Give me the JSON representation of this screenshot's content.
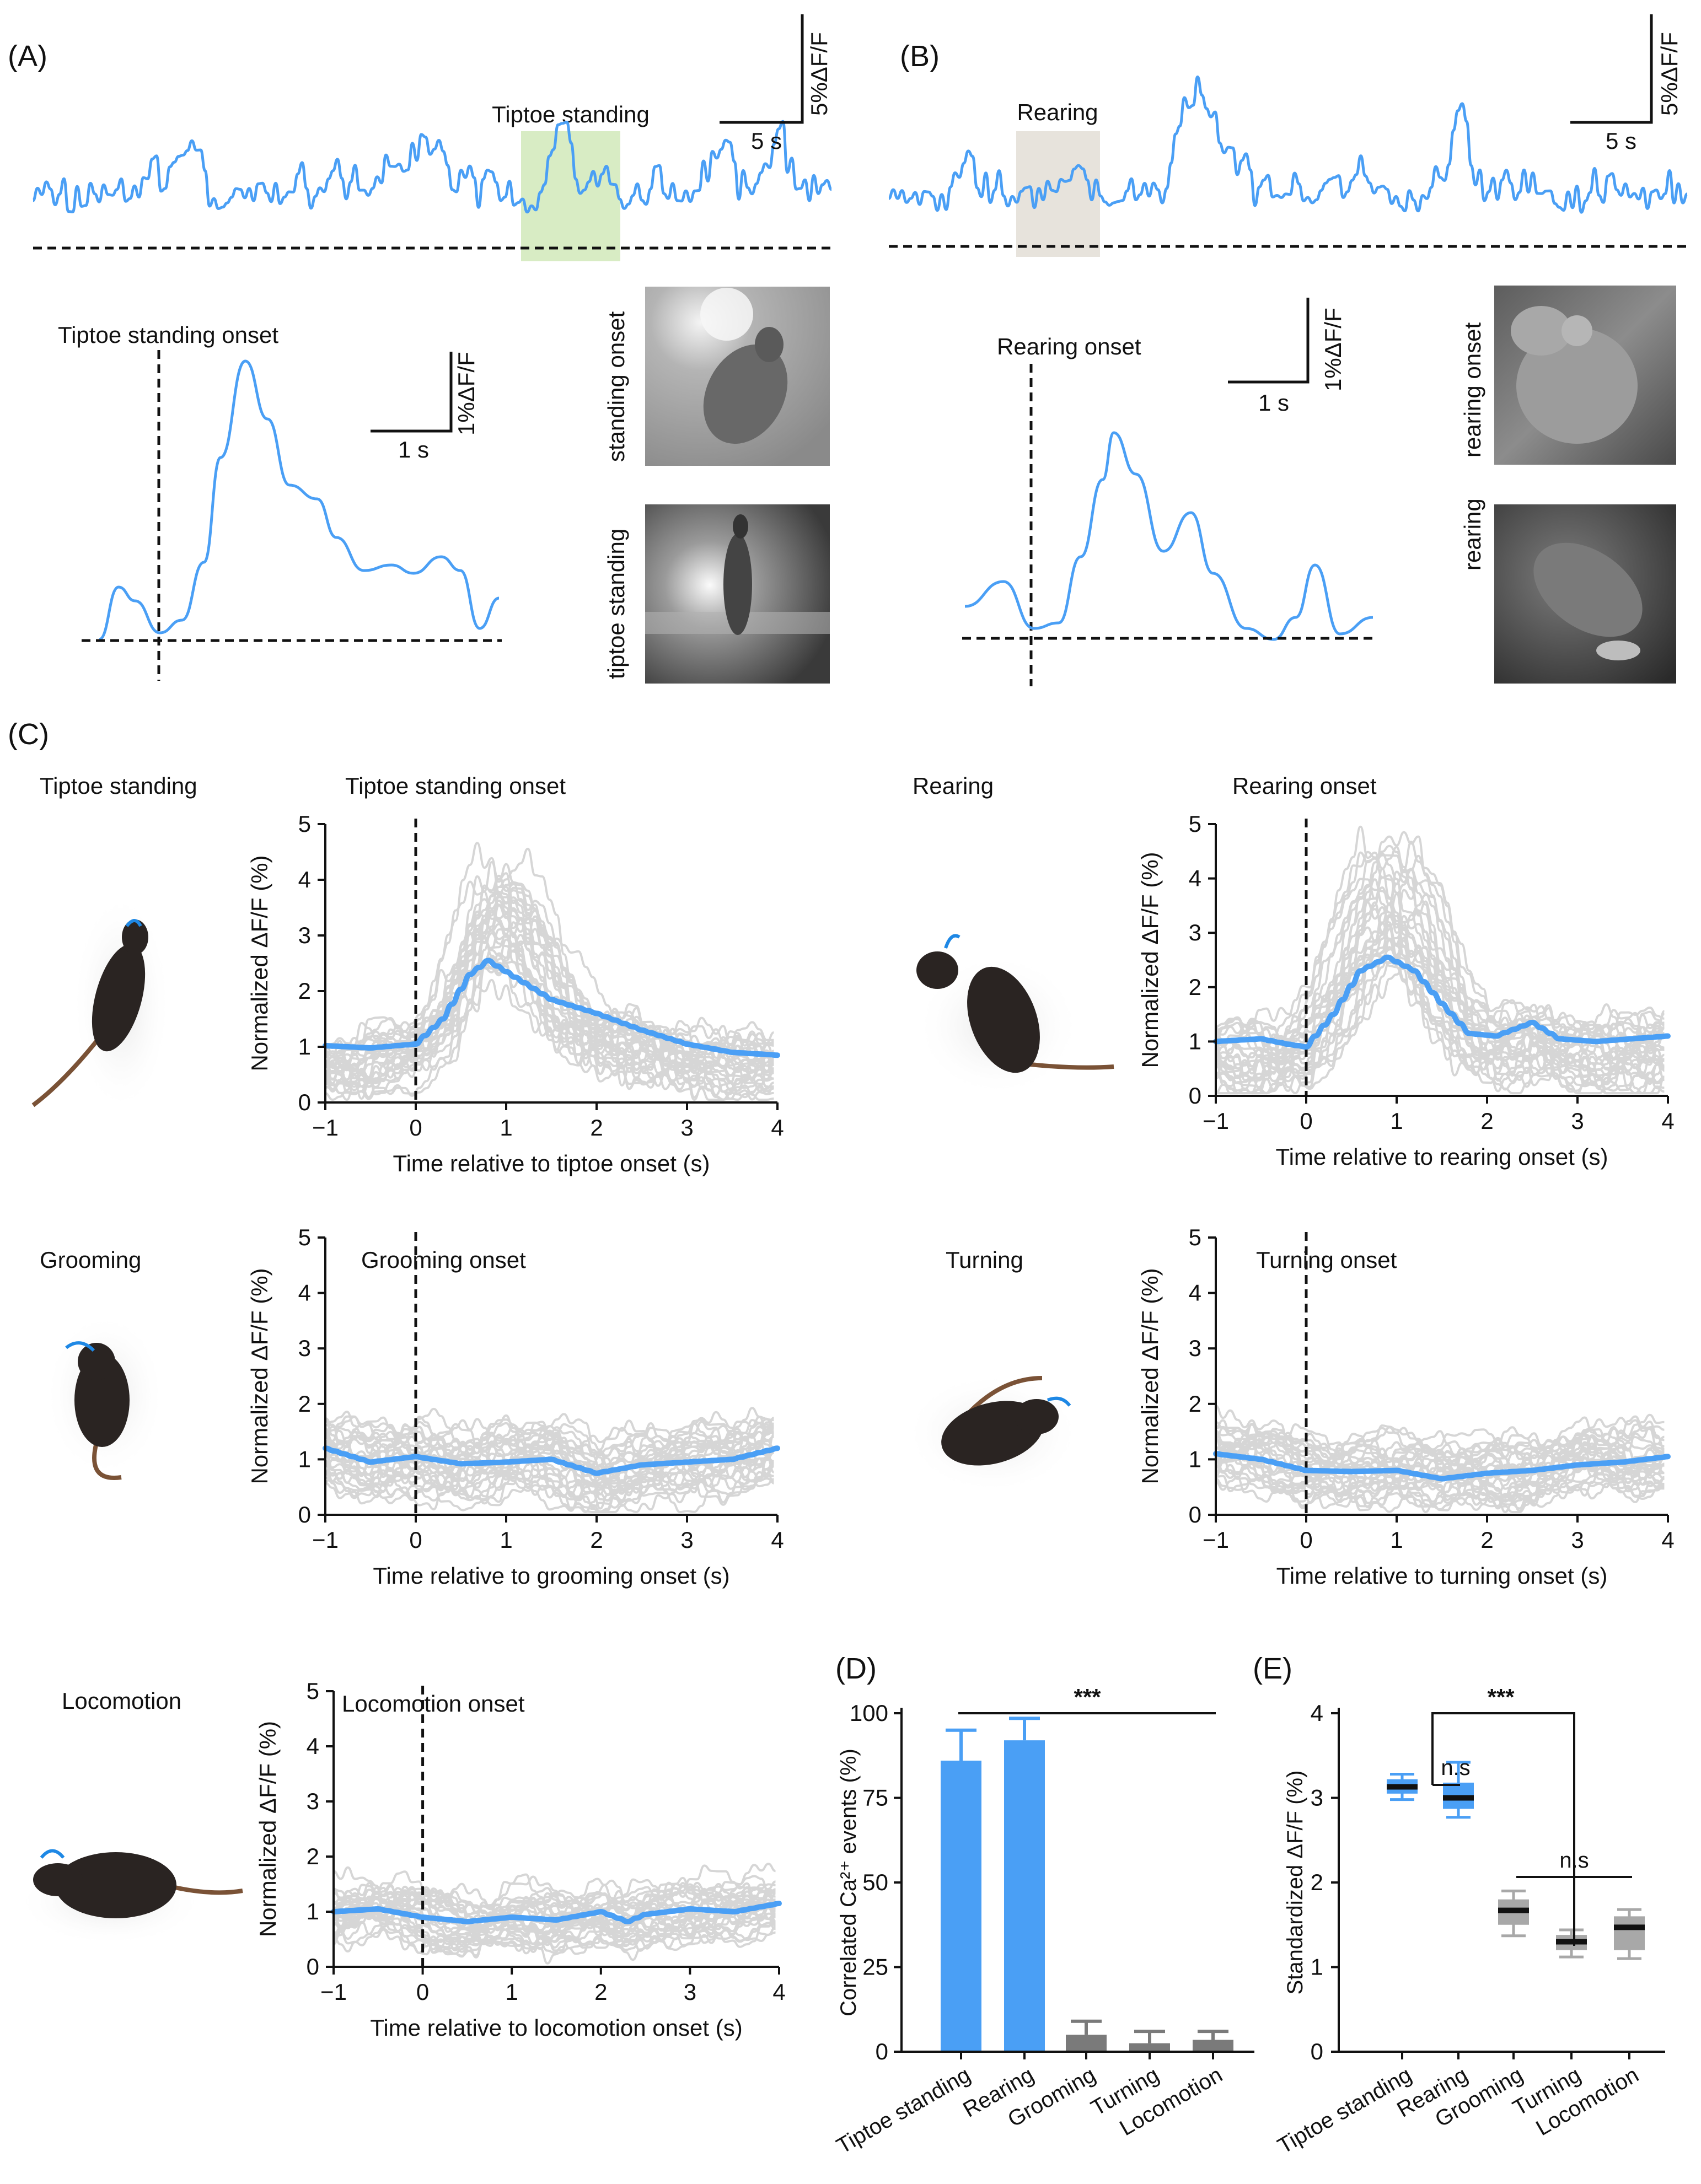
{
  "colors": {
    "accent": "#4a9ff5",
    "trial": "#d6d6d6",
    "gray_bar": "#7a7a7a",
    "gray_box": "#a8a8a8",
    "tiptoe_highlight": "#d8ecc4",
    "rearing_highlight": "#e7e3dc"
  },
  "panelA": {
    "label": "(A)",
    "highlight_label": "Tiptoe standing",
    "scale_y_label": "5%ΔF/F",
    "scale_x_label": "5 s",
    "onset_title": "Tiptoe standing onset",
    "onset_scale_y_label": "1%ΔF/F",
    "onset_scale_x_label": "1 s",
    "photo1_label": "standing onset",
    "photo2_label": "tiptoe standing"
  },
  "panelB": {
    "label": "(B)",
    "highlight_label": "Rearing",
    "scale_y_label": "5%ΔF/F",
    "scale_x_label": "5 s",
    "onset_title": "Rearing onset",
    "onset_scale_y_label": "1%ΔF/F",
    "onset_scale_x_label": "1 s",
    "photo1_label": "rearing onset",
    "photo2_label": "rearing"
  },
  "panelC": {
    "label": "(C)"
  },
  "panelD": {
    "label": "(D)"
  },
  "panelE": {
    "label": "(E)"
  },
  "chart_data": [
    {
      "id": "tiptoe",
      "type": "line",
      "behavior_label": "Tiptoe standing",
      "onset_label": "Tiptoe standing onset",
      "xlabel": "Time relative to tiptoe onset (s)",
      "ylabel": "Normalized ΔF/F (%)",
      "xlim": [
        -1,
        4
      ],
      "ylim": [
        0,
        5
      ],
      "x_ticks": [
        -1,
        0,
        1,
        2,
        3,
        4
      ],
      "x_tick_labels": [
        "−1",
        "0",
        "1",
        "2",
        "3",
        "4"
      ],
      "y_ticks": [
        0,
        1,
        2,
        3,
        4,
        5
      ],
      "mean_series": {
        "x": [
          -1,
          -0.5,
          0,
          0.3,
          0.6,
          0.8,
          1.0,
          1.5,
          2.0,
          2.5,
          3.0,
          3.5,
          4.0
        ],
        "y": [
          1.02,
          0.98,
          1.05,
          1.5,
          2.3,
          2.55,
          2.35,
          1.85,
          1.6,
          1.3,
          1.05,
          0.9,
          0.85
        ]
      },
      "trials": {
        "count": 30,
        "amplitude": 0.6,
        "peak": 3.2,
        "seed": 11
      }
    },
    {
      "id": "rearing",
      "type": "line",
      "behavior_label": "Rearing",
      "onset_label": "Rearing onset",
      "xlabel": "Time relative to rearing onset (s)",
      "ylabel": "Normalized ΔF/F (%)",
      "xlim": [
        -1,
        4
      ],
      "ylim": [
        0,
        5
      ],
      "x_ticks": [
        -1,
        0,
        1,
        2,
        3,
        4
      ],
      "x_tick_labels": [
        "−1",
        "0",
        "1",
        "2",
        "3",
        "4"
      ],
      "y_ticks": [
        0,
        1,
        2,
        3,
        4,
        5
      ],
      "mean_series": {
        "x": [
          -1,
          -0.5,
          -0.2,
          0,
          0.3,
          0.6,
          0.9,
          1.2,
          1.5,
          1.8,
          2.1,
          2.5,
          2.8,
          3.2,
          3.6,
          4.0
        ],
        "y": [
          1.0,
          1.05,
          0.95,
          0.9,
          1.5,
          2.3,
          2.55,
          2.3,
          1.7,
          1.15,
          1.1,
          1.35,
          1.05,
          1.0,
          1.05,
          1.1
        ]
      },
      "trials": {
        "count": 30,
        "amplitude": 0.8,
        "peak": 3.6,
        "seed": 23
      }
    },
    {
      "id": "grooming",
      "type": "line",
      "behavior_label": "Grooming",
      "onset_label": "Grooming onset",
      "xlabel": "Time relative to grooming onset (s)",
      "ylabel": "Normalized ΔF/F (%)",
      "xlim": [
        -1,
        4
      ],
      "ylim": [
        0,
        5
      ],
      "x_ticks": [
        -1,
        0,
        1,
        2,
        3,
        4
      ],
      "x_tick_labels": [
        "−1",
        "0",
        "1",
        "2",
        "3",
        "4"
      ],
      "y_ticks": [
        0,
        1,
        2,
        3,
        4,
        5
      ],
      "mean_series": {
        "x": [
          -1,
          -0.5,
          0,
          0.5,
          1.0,
          1.5,
          2.0,
          2.5,
          3.0,
          3.5,
          4.0
        ],
        "y": [
          1.2,
          0.95,
          1.05,
          0.92,
          0.95,
          1.0,
          0.75,
          0.9,
          0.95,
          1.0,
          1.2
        ]
      },
      "trials": {
        "count": 30,
        "amplitude": 0.8,
        "peak": 0,
        "seed": 37
      }
    },
    {
      "id": "turning",
      "type": "line",
      "behavior_label": "Turning",
      "onset_label": "Turning onset",
      "xlabel": "Time relative to turning onset (s)",
      "ylabel": "Normalized ΔF/F (%)",
      "xlim": [
        -1,
        4
      ],
      "ylim": [
        0,
        5
      ],
      "x_ticks": [
        -1,
        0,
        1,
        2,
        3,
        4
      ],
      "x_tick_labels": [
        "−1",
        "0",
        "1",
        "2",
        "3",
        "4"
      ],
      "y_ticks": [
        0,
        1,
        2,
        3,
        4,
        5
      ],
      "mean_series": {
        "x": [
          -1,
          -0.5,
          0,
          0.5,
          1.0,
          1.5,
          2.0,
          2.5,
          3.0,
          3.5,
          4.0
        ],
        "y": [
          1.1,
          1.0,
          0.8,
          0.78,
          0.8,
          0.65,
          0.75,
          0.8,
          0.9,
          0.95,
          1.05
        ]
      },
      "trials": {
        "count": 30,
        "amplitude": 0.7,
        "peak": 0,
        "seed": 53
      }
    },
    {
      "id": "locomotion",
      "type": "line",
      "behavior_label": "Locomotion",
      "onset_label": "Locomotion onset",
      "xlabel": "Time relative to locomotion onset (s)",
      "ylabel": "Normalized ΔF/F (%)",
      "xlim": [
        -1,
        4
      ],
      "ylim": [
        0,
        5
      ],
      "x_ticks": [
        -1,
        0,
        1,
        2,
        3,
        4
      ],
      "x_tick_labels": [
        "−1",
        "0",
        "1",
        "2",
        "3",
        "4"
      ],
      "y_ticks": [
        0,
        1,
        2,
        3,
        4,
        5
      ],
      "mean_series": {
        "x": [
          -1,
          -0.5,
          0,
          0.5,
          1.0,
          1.5,
          2.0,
          2.3,
          2.5,
          3.0,
          3.5,
          4.0
        ],
        "y": [
          1.0,
          1.05,
          0.9,
          0.82,
          0.9,
          0.85,
          1.0,
          0.82,
          0.95,
          1.05,
          1.0,
          1.15
        ]
      },
      "trials": {
        "count": 30,
        "amplitude": 0.65,
        "peak": 0,
        "seed": 71
      }
    },
    {
      "id": "D",
      "type": "bar",
      "ylabel": "Correlated Ca²⁺ events (%)",
      "ylim": [
        0,
        100
      ],
      "y_ticks": [
        0,
        25,
        50,
        75,
        100
      ],
      "categories": [
        "Tiptoe standing",
        "Rearing",
        "Grooming",
        "Turning",
        "Locomotion"
      ],
      "values": [
        86,
        92,
        5,
        2.5,
        3.5
      ],
      "errors": [
        9,
        6.5,
        4,
        3.5,
        2.5
      ],
      "highlight": [
        true,
        true,
        false,
        false,
        false
      ],
      "significance": "***"
    },
    {
      "id": "E",
      "type": "box",
      "ylabel": "Standardized ΔF/F (%)",
      "ylim": [
        0,
        4
      ],
      "y_ticks": [
        0,
        1,
        2,
        3,
        4
      ],
      "categories": [
        "Tiptoe standing",
        "Rearing",
        "Grooming",
        "Turning",
        "Locomotion"
      ],
      "boxes": [
        {
          "min": 2.98,
          "q1": 3.05,
          "median": 3.13,
          "q3": 3.22,
          "max": 3.28
        },
        {
          "min": 2.77,
          "q1": 2.87,
          "median": 3.0,
          "q3": 3.18,
          "max": 3.42
        },
        {
          "min": 1.37,
          "q1": 1.5,
          "median": 1.67,
          "q3": 1.8,
          "max": 1.9
        },
        {
          "min": 1.12,
          "q1": 1.2,
          "median": 1.3,
          "q3": 1.38,
          "max": 1.44
        },
        {
          "min": 1.1,
          "q1": 1.2,
          "median": 1.47,
          "q3": 1.6,
          "max": 1.68
        }
      ],
      "highlight": [
        true,
        true,
        false,
        false,
        false
      ],
      "annotations": [
        "n.s",
        "***",
        "n.s"
      ]
    }
  ]
}
